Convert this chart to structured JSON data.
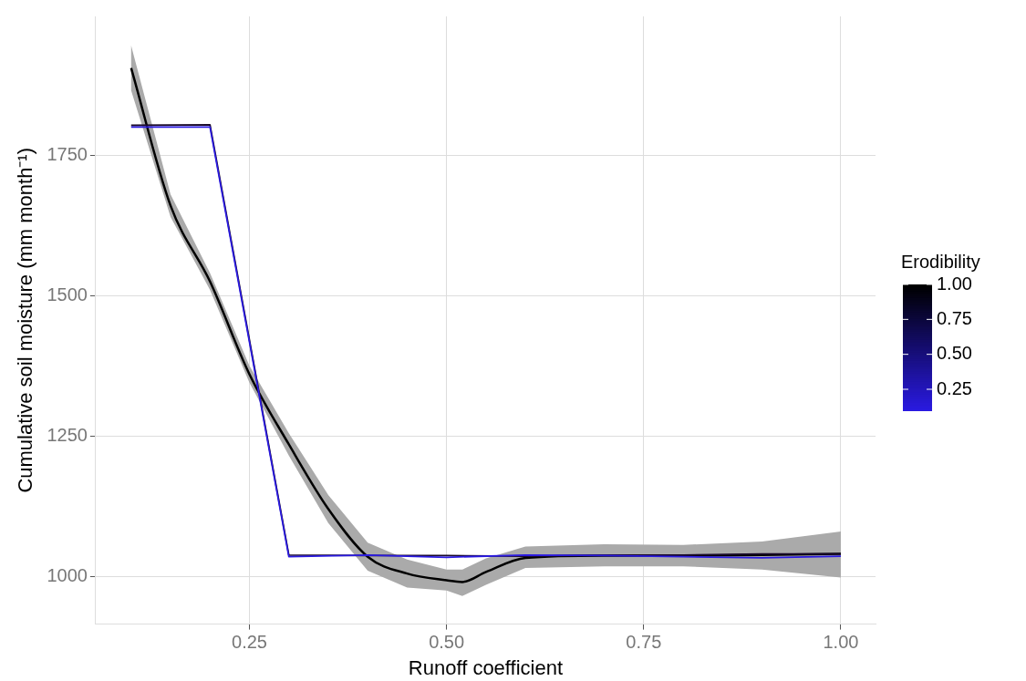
{
  "chart_data": {
    "type": "line",
    "xlabel": "Runoff coefficient",
    "ylabel": "Cumulative soil moisture (mm month⁻¹)",
    "clabel": "Erodibility",
    "clim": [
      0.1,
      1.0
    ],
    "cticks": [
      0.25,
      {
        "value": 0.5,
        "label": "0.50"
      },
      0.75,
      {
        "value": 1.0,
        "label": "1.00"
      }
    ],
    "x": [
      0.1,
      0.2,
      0.3,
      0.4,
      0.5,
      0.6,
      0.7,
      0.8,
      0.9,
      1.0
    ],
    "xlim": [
      0.055,
      1.044
    ],
    "xticks": [
      {
        "value": 0.25,
        "label": "0.25"
      },
      {
        "value": 0.5,
        "label": "0.50"
      },
      {
        "value": 0.75,
        "label": "0.75"
      },
      {
        "value": 1.0,
        "label": "1.00"
      }
    ],
    "ylim": [
      915,
      1997
    ],
    "yticks": [
      1000,
      1250,
      1500,
      1750
    ],
    "grid": true,
    "legend": false,
    "marker": "none",
    "series": [
      {
        "color": "#2a1ae0",
        "values": [
          1800,
          1800,
          1035,
          1038,
          1034,
          1038,
          1037,
          1035,
          1033,
          1036
        ]
      },
      {
        "color": "#1a0a2a",
        "values": [
          1803,
          1804,
          1038,
          1037,
          1037,
          1036,
          1038,
          1038,
          1040,
          1040
        ]
      },
      {
        "type": "line",
        "color": "#000000",
        "x": [
          0.1,
          0.15,
          0.2,
          0.25,
          0.3,
          0.35,
          0.4,
          0.45,
          0.5,
          0.52,
          0.55,
          0.6,
          0.7,
          0.8,
          0.9,
          1.0
        ],
        "values": [
          1905,
          1660,
          1525,
          1360,
          1235,
          1120,
          1035,
          1005,
          993,
          990,
          1008,
          1033,
          1037,
          1037,
          1038,
          1040
        ],
        "lower": [
          1865,
          1640,
          1510,
          1345,
          1215,
          1095,
          1010,
          980,
          975,
          965,
          985,
          1015,
          1018,
          1018,
          1012,
          998
        ],
        "upper": [
          1945,
          1680,
          1540,
          1375,
          1255,
          1145,
          1060,
          1030,
          1012,
          1012,
          1032,
          1053,
          1057,
          1056,
          1062,
          1080
        ]
      }
    ]
  }
}
